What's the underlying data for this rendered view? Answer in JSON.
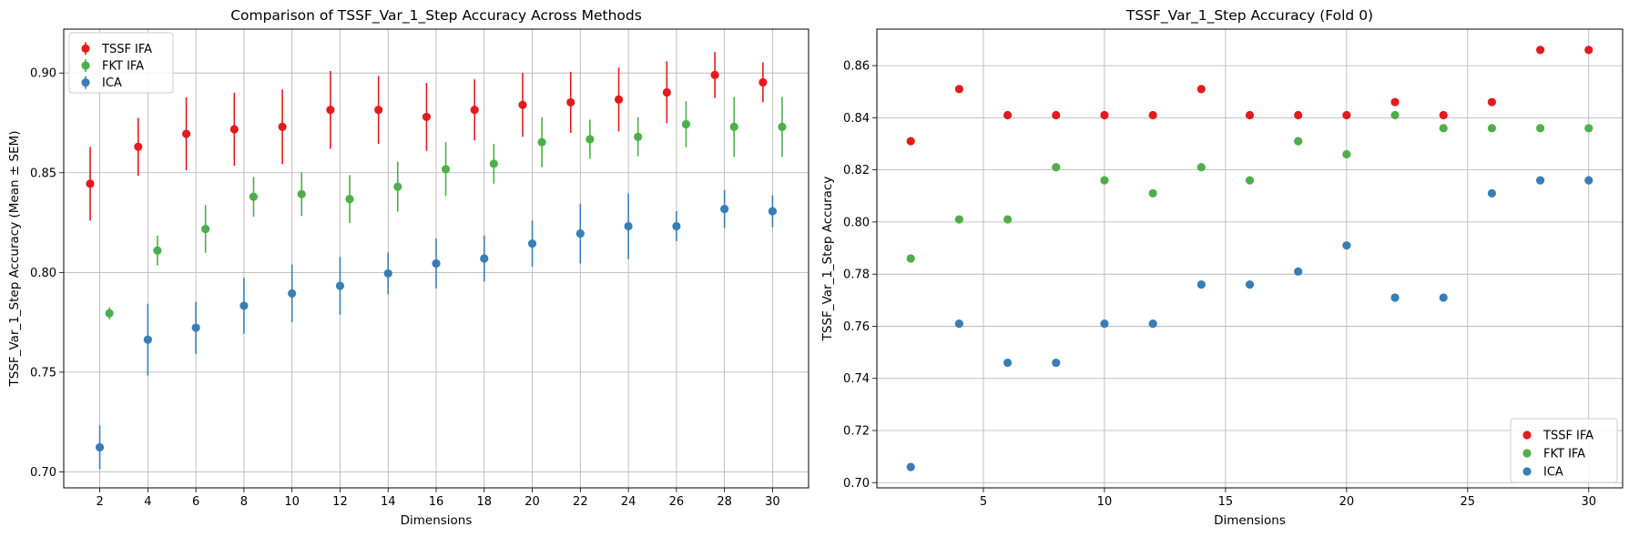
{
  "chart_data": [
    {
      "type": "scatter",
      "title": "Comparison of TSSF_Var_1_Step Accuracy Across Methods",
      "xlabel": "Dimensions",
      "ylabel": "TSSF_Var_1_Step Accuracy (Mean ± SEM)",
      "xlim": [
        0.5,
        31.5
      ],
      "ylim": [
        0.692,
        0.922
      ],
      "x_ticks": [
        "2",
        "4",
        "6",
        "8",
        "10",
        "12",
        "14",
        "16",
        "18",
        "20",
        "22",
        "24",
        "26",
        "28",
        "30"
      ],
      "y_ticks": [
        "0.70",
        "0.75",
        "0.80",
        "0.85",
        "0.90"
      ],
      "grid": true,
      "legend_position": "upper-left",
      "error_bars": true,
      "series": [
        {
          "name": "TSSF IFA",
          "color": "#e41a1c",
          "x_offset": -0.4,
          "x": [
            2,
            4,
            6,
            8,
            10,
            12,
            14,
            16,
            18,
            20,
            22,
            24,
            26,
            28,
            30
          ],
          "y": [
            0.8445,
            0.863,
            0.8695,
            0.8718,
            0.873,
            0.8815,
            0.8815,
            0.878,
            0.8815,
            0.884,
            0.8853,
            0.8867,
            0.8903,
            0.899,
            0.8953
          ],
          "err": [
            0.0185,
            0.0145,
            0.0183,
            0.0183,
            0.0187,
            0.0195,
            0.017,
            0.017,
            0.0153,
            0.016,
            0.0153,
            0.016,
            0.0155,
            0.0115,
            0.01
          ]
        },
        {
          "name": "FKT IFA",
          "color": "#4daf4a",
          "x_offset": 0.4,
          "x": [
            2,
            4,
            6,
            8,
            10,
            12,
            14,
            16,
            18,
            20,
            22,
            24,
            26,
            28,
            30
          ],
          "y": [
            0.7795,
            0.811,
            0.8218,
            0.838,
            0.8393,
            0.8368,
            0.843,
            0.8518,
            0.8545,
            0.8653,
            0.8668,
            0.868,
            0.8743,
            0.873,
            0.873
          ],
          "err": [
            0.003,
            0.0075,
            0.012,
            0.01,
            0.011,
            0.012,
            0.0125,
            0.0135,
            0.01,
            0.0125,
            0.0098,
            0.0098,
            0.0115,
            0.015,
            0.015
          ]
        },
        {
          "name": "ICA",
          "color": "#377eb8",
          "x_offset": 0,
          "x": [
            2,
            4,
            6,
            8,
            10,
            12,
            14,
            16,
            18,
            20,
            22,
            24,
            26,
            28,
            30
          ],
          "y": [
            0.7123,
            0.7663,
            0.7723,
            0.7833,
            0.7895,
            0.7933,
            0.7995,
            0.8045,
            0.807,
            0.8145,
            0.8195,
            0.8232,
            0.8232,
            0.8318,
            0.8307
          ],
          "err": [
            0.011,
            0.018,
            0.013,
            0.014,
            0.0145,
            0.0145,
            0.0105,
            0.0125,
            0.0115,
            0.0115,
            0.015,
            0.0165,
            0.0075,
            0.0095,
            0.008
          ]
        }
      ]
    },
    {
      "type": "scatter",
      "title": "TSSF_Var_1_Step Accuracy (Fold 0)",
      "xlabel": "Dimensions",
      "ylabel": "TSSF_Var_1_Step Accuracy",
      "xlim": [
        0.6,
        31.4
      ],
      "ylim": [
        0.698,
        0.874
      ],
      "x_ticks": [
        "5",
        "10",
        "15",
        "20",
        "25",
        "30"
      ],
      "y_ticks": [
        "0.70",
        "0.72",
        "0.74",
        "0.76",
        "0.78",
        "0.80",
        "0.82",
        "0.84",
        "0.86"
      ],
      "grid": true,
      "legend_position": "lower-right",
      "error_bars": false,
      "series": [
        {
          "name": "TSSF IFA",
          "color": "#e41a1c",
          "x": [
            2,
            4,
            6,
            8,
            10,
            12,
            14,
            16,
            18,
            20,
            22,
            24,
            26,
            28,
            30
          ],
          "y": [
            0.831,
            0.851,
            0.841,
            0.841,
            0.841,
            0.841,
            0.851,
            0.841,
            0.841,
            0.841,
            0.846,
            0.841,
            0.846,
            0.866,
            0.866
          ]
        },
        {
          "name": "FKT IFA",
          "color": "#4daf4a",
          "x": [
            2,
            4,
            6,
            8,
            10,
            12,
            14,
            16,
            18,
            20,
            22,
            24,
            26,
            28,
            30
          ],
          "y": [
            0.786,
            0.801,
            0.801,
            0.821,
            0.816,
            0.811,
            0.821,
            0.816,
            0.831,
            0.826,
            0.841,
            0.836,
            0.836,
            0.836,
            0.836
          ]
        },
        {
          "name": "ICA",
          "color": "#377eb8",
          "x": [
            2,
            4,
            6,
            8,
            10,
            12,
            14,
            16,
            18,
            20,
            22,
            24,
            26,
            28,
            30
          ],
          "y": [
            0.706,
            0.761,
            0.746,
            0.746,
            0.761,
            0.761,
            0.776,
            0.776,
            0.781,
            0.791,
            0.771,
            0.771,
            0.811,
            0.816,
            0.816
          ]
        }
      ]
    }
  ]
}
